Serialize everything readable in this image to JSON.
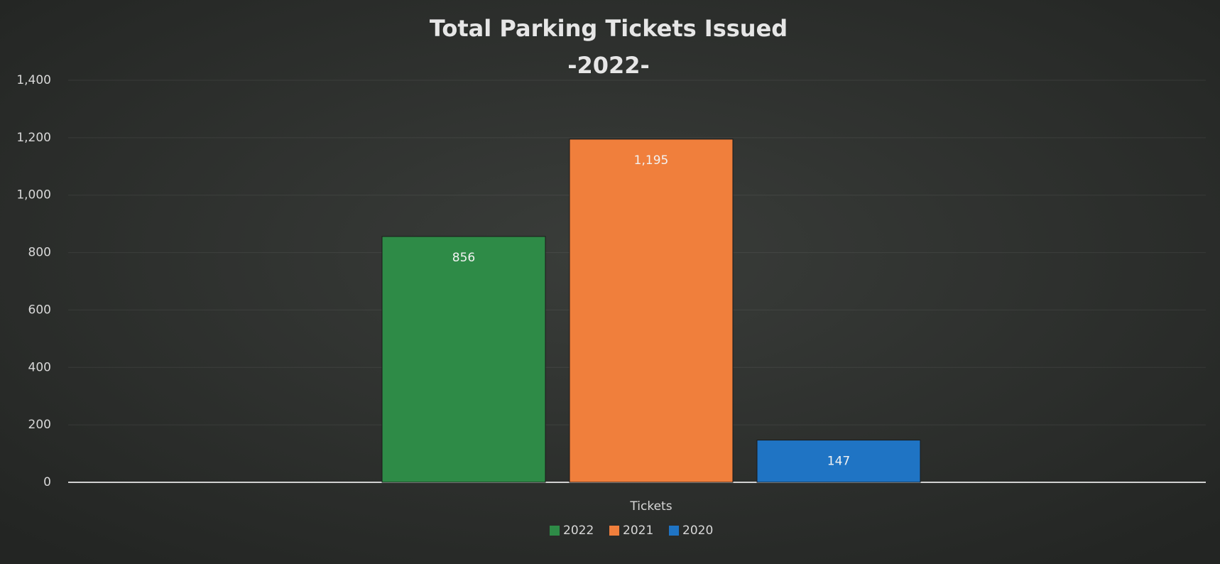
{
  "chart_data": {
    "type": "bar",
    "title": "Total Parking Tickets Issued",
    "subtitle": "-2022-",
    "categories": [
      "Tickets"
    ],
    "series": [
      {
        "name": "2022",
        "color": "#2e8b47",
        "values": [
          856
        ]
      },
      {
        "name": "2021",
        "color": "#f07f3c",
        "values": [
          1195
        ],
        "value_labels": [
          "1,195"
        ]
      },
      {
        "name": "2020",
        "color": "#1f74c4",
        "values": [
          147
        ]
      }
    ],
    "ylim": [
      0,
      1400
    ],
    "yticks": [
      0,
      200,
      400,
      600,
      800,
      {
        "value": 1000,
        "label": "1,000"
      },
      {
        "value": 1200,
        "label": "1,200"
      },
      {
        "value": 1400,
        "label": "1,400"
      }
    ],
    "grid": true,
    "legend": "bottom"
  }
}
